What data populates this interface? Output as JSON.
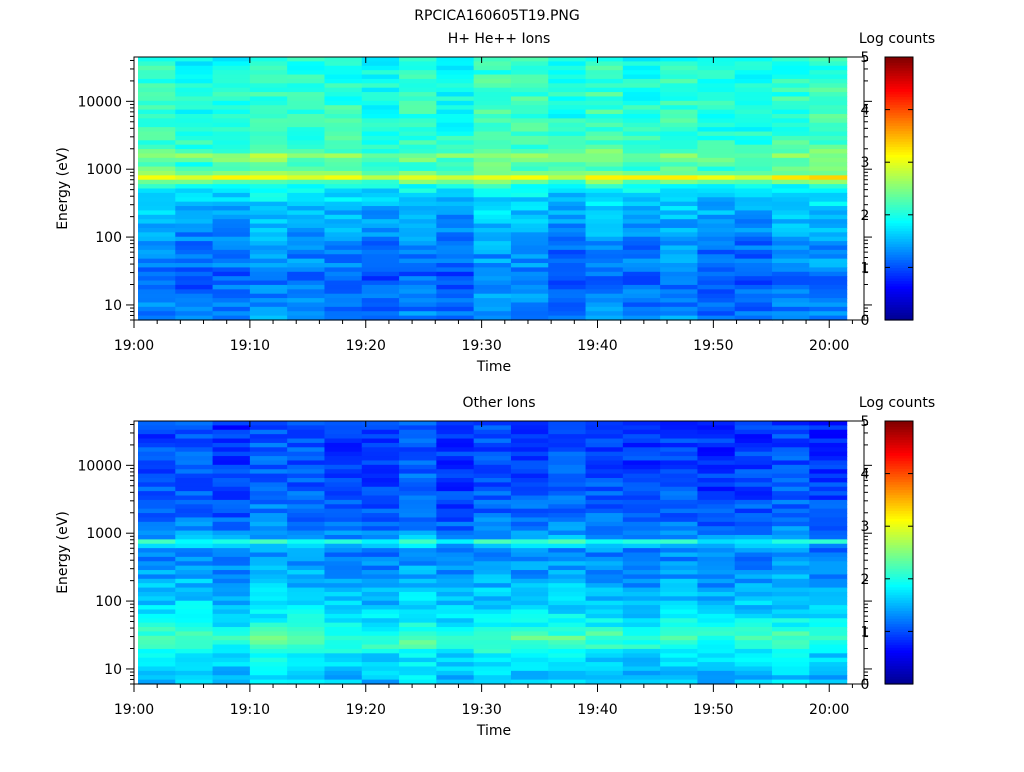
{
  "figure": {
    "title": "RPCICA160605T19.PNG"
  },
  "colors": {
    "colormap": [
      "#00008f",
      "#0000ff",
      "#0080ff",
      "#00ffff",
      "#80ff80",
      "#ffff00",
      "#ff8000",
      "#ff0000",
      "#800000"
    ],
    "axis": "#000000",
    "gap": "#ffffff"
  },
  "chart_data": [
    {
      "type": "heatmap",
      "title": "H+ He++ Ions",
      "xlabel": "Time",
      "ylabel": "Energy (eV)",
      "x_ticks": [
        "19:00",
        "19:10",
        "19:20",
        "19:30",
        "19:40",
        "19:50",
        "20:00"
      ],
      "x_range_minutes": [
        0,
        63
      ],
      "data_end_minutes": 61.5,
      "yscale": "log",
      "y_ticks": [
        "10",
        "100",
        "1000",
        "10000"
      ],
      "ylim": [
        6,
        45000
      ],
      "colorbar": {
        "label": "Log counts",
        "range": [
          0,
          5
        ],
        "ticks": [
          "0",
          "1",
          "2",
          "3",
          "4",
          "5"
        ]
      },
      "energy_profile": [
        {
          "energy": 7,
          "value": 1.3
        },
        {
          "energy": 10,
          "value": 1.2
        },
        {
          "energy": 15,
          "value": 1.25
        },
        {
          "energy": 20,
          "value": 1.15
        },
        {
          "energy": 30,
          "value": 1.1
        },
        {
          "energy": 40,
          "value": 1.3
        },
        {
          "energy": 60,
          "value": 1.25
        },
        {
          "energy": 100,
          "value": 1.35
        },
        {
          "energy": 200,
          "value": 1.5
        },
        {
          "energy": 400,
          "value": 1.7
        },
        {
          "energy": 600,
          "value": 2.0
        },
        {
          "energy": 750,
          "value": 3.1
        },
        {
          "energy": 900,
          "value": 2.3
        },
        {
          "energy": 1200,
          "value": 2.2
        },
        {
          "energy": 1550,
          "value": 2.6
        },
        {
          "energy": 2000,
          "value": 2.15
        },
        {
          "energy": 5000,
          "value": 2.1
        },
        {
          "energy": 10000,
          "value": 2.1
        },
        {
          "energy": 20000,
          "value": 2.05
        },
        {
          "energy": 45000,
          "value": 2.0
        }
      ]
    },
    {
      "type": "heatmap",
      "title": "Other Ions",
      "xlabel": "Time",
      "ylabel": "Energy (eV)",
      "x_ticks": [
        "19:00",
        "19:10",
        "19:20",
        "19:30",
        "19:40",
        "19:50",
        "20:00"
      ],
      "x_range_minutes": [
        0,
        63
      ],
      "data_end_minutes": 61.5,
      "yscale": "log",
      "y_ticks": [
        "10",
        "100",
        "1000",
        "10000"
      ],
      "ylim": [
        6,
        45000
      ],
      "colorbar": {
        "label": "Log counts",
        "range": [
          0,
          5
        ],
        "ticks": [
          "0",
          "1",
          "2",
          "3",
          "4",
          "5"
        ]
      },
      "energy_profile": [
        {
          "energy": 7,
          "value": 1.6
        },
        {
          "energy": 10,
          "value": 1.65
        },
        {
          "energy": 15,
          "value": 1.75
        },
        {
          "energy": 20,
          "value": 2.0
        },
        {
          "energy": 28,
          "value": 2.3
        },
        {
          "energy": 40,
          "value": 1.95
        },
        {
          "energy": 60,
          "value": 1.75
        },
        {
          "energy": 100,
          "value": 1.6
        },
        {
          "energy": 200,
          "value": 1.45
        },
        {
          "energy": 400,
          "value": 1.3
        },
        {
          "energy": 600,
          "value": 1.3
        },
        {
          "energy": 750,
          "value": 2.0
        },
        {
          "energy": 900,
          "value": 1.3
        },
        {
          "energy": 2000,
          "value": 1.1
        },
        {
          "energy": 5000,
          "value": 1.0
        },
        {
          "energy": 10000,
          "value": 1.0
        },
        {
          "energy": 20000,
          "value": 0.95
        },
        {
          "energy": 45000,
          "value": 0.9
        }
      ]
    }
  ]
}
